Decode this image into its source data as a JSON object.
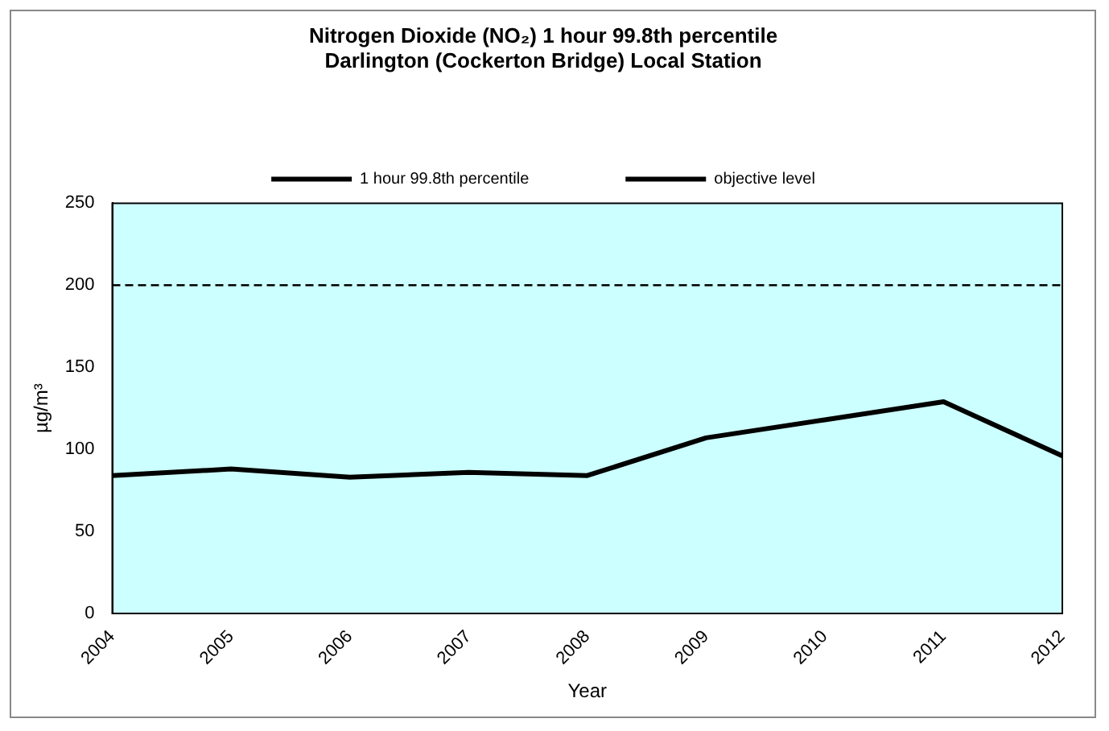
{
  "chart_data": {
    "type": "line",
    "title": "Nitrogen Dioxide (NO₂) 1 hour 99.8th percentile\nDarlington (Cockerton Bridge) Local Station",
    "xlabel": "Year",
    "ylabel": "µg/m³",
    "categories": [
      "2004",
      "2005",
      "2006",
      "2007",
      "2008",
      "2009",
      "2010",
      "2011",
      "2012"
    ],
    "series": [
      {
        "name": "1 hour 99.8th percentile",
        "color": "#000000",
        "line_style": "solid",
        "values": [
          84,
          88,
          83,
          86,
          84,
          107,
          118,
          129,
          96
        ]
      },
      {
        "name": "objective level",
        "color": "#000000",
        "line_style": "dashed",
        "values": [
          200,
          200,
          200,
          200,
          200,
          200,
          200,
          200,
          200
        ]
      }
    ],
    "ylim": [
      0,
      250
    ],
    "yticks": [
      0,
      50,
      100,
      150,
      200,
      250
    ],
    "grid": false,
    "legend": "top",
    "marker": "none"
  }
}
